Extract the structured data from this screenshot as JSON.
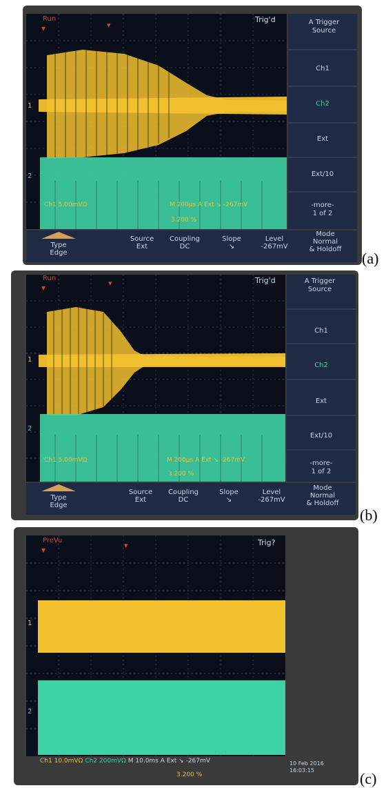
{
  "colors": {
    "ch1": "#f2c12e",
    "ch2": "#3fd1a6",
    "bezel": "#3a3a3a",
    "screen": "#0b0f1c",
    "menu_text": "#c9d6e6",
    "status_red": "#e0412a"
  },
  "panels": [
    {
      "label": "(a)",
      "status": "Run",
      "trigger_state": "Trig'd",
      "ch1_marker": "1",
      "ch2_marker": "2",
      "side_menu": {
        "title_line1": "A Trigger",
        "title_line2": "Source",
        "items": [
          "Ch1",
          "Ch2",
          "Ext",
          "Ext/10"
        ],
        "more_line1": "-more-",
        "more_line2": "1 of 2"
      },
      "readout": {
        "ch1": "Ch1",
        "ch1_scale": "5.00mVΩ",
        "timebase": "M 200µs",
        "trigger": "A  Ext  ↘ -267mV",
        "position": "3.200 %"
      },
      "bottom_menu": [
        {
          "line1": "Type",
          "line2": "Edge"
        },
        {
          "line1": "Source",
          "line2": "Ext"
        },
        {
          "line1": "Coupling",
          "line2": "DC"
        },
        {
          "line1": "Slope",
          "line2": "↘"
        },
        {
          "line1": "Level",
          "line2": "-267mV"
        },
        {
          "line1": "Mode",
          "line2": "Normal",
          "line3": "& Holdoff"
        }
      ]
    },
    {
      "label": "(b)",
      "status": "Run",
      "trigger_state": "Trig'd",
      "ch1_marker": "1",
      "ch2_marker": "2",
      "side_menu": {
        "title_line1": "A Trigger",
        "title_line2": "Source",
        "items": [
          "Ch1",
          "Ch2",
          "Ext",
          "Ext/10"
        ],
        "more_line1": "-more-",
        "more_line2": "1 of 2"
      },
      "readout": {
        "ch1": "Ch1",
        "ch1_scale": "5.00mVΩ",
        "timebase": "M 200µs",
        "trigger": "A  Ext  ↘ -267mV",
        "position": "3.200 %"
      },
      "bottom_menu": [
        {
          "line1": "Type",
          "line2": "Edge"
        },
        {
          "line1": "Source",
          "line2": "Ext"
        },
        {
          "line1": "Coupling",
          "line2": "DC"
        },
        {
          "line1": "Slope",
          "line2": "↘"
        },
        {
          "line1": "Level",
          "line2": "-267mV"
        },
        {
          "line1": "Mode",
          "line2": "Normal",
          "line3": "& Holdoff"
        }
      ]
    },
    {
      "label": "(c)",
      "status": "PreVu",
      "trigger_state": "Trig?",
      "ch1_marker": "1",
      "ch2_marker": "2",
      "readout": {
        "ch1": "Ch1",
        "ch1_scale": "10.0mVΩ",
        "ch2": "Ch2",
        "ch2_scale": "200mVΩ",
        "timebase": "M 10.0ms",
        "trigger": "A  Ext  ↘ -267mV",
        "position": "3.200 %",
        "date": "10 Feb 2016",
        "time": "16:03:15"
      }
    }
  ]
}
